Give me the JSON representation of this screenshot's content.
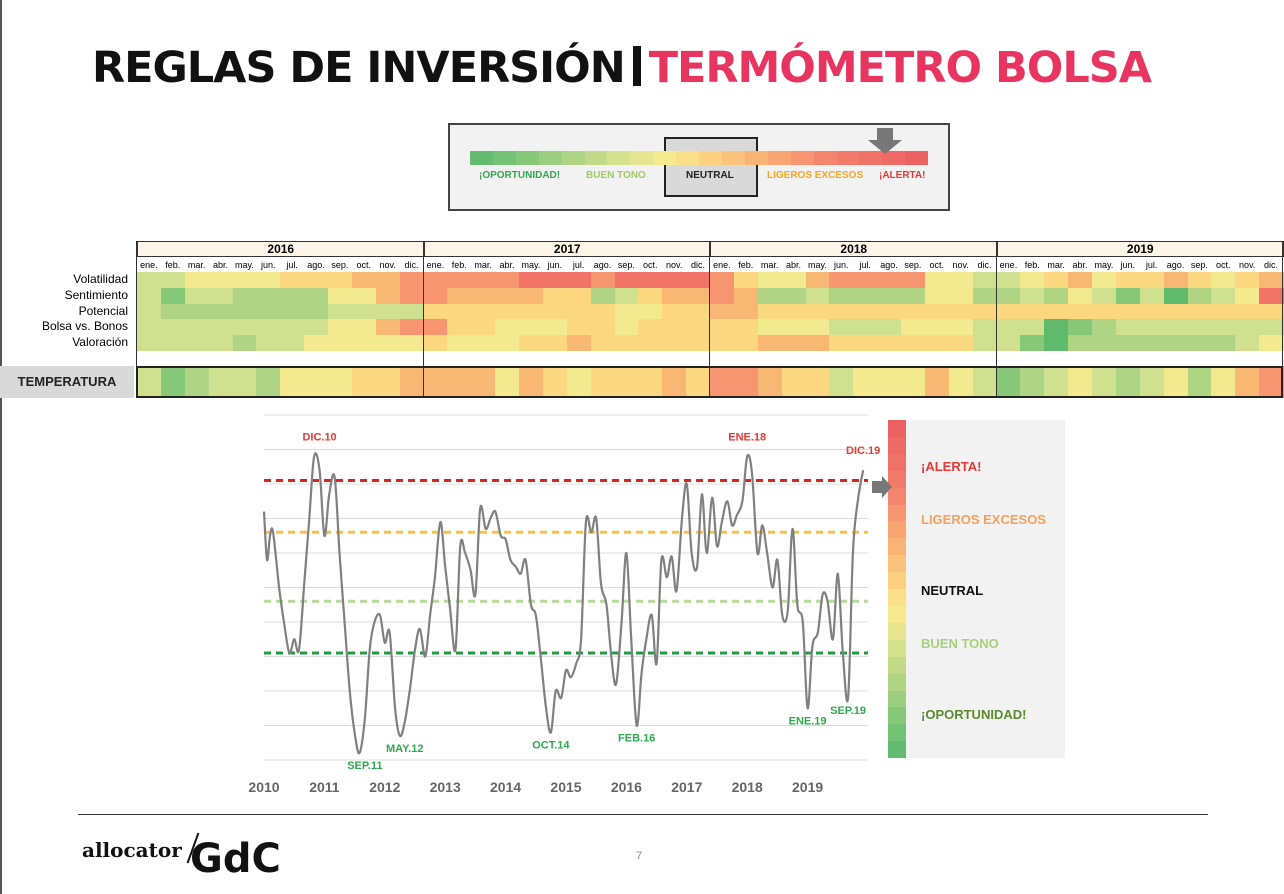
{
  "title": {
    "part1": "REGLAS DE INVERSIÓN",
    "part2": "TERMÓMETRO BOLSA"
  },
  "scale": {
    "labels": [
      "¡OPORTUNIDAD!",
      "BUEN TONO",
      "NEUTRAL",
      "LIGEROS EXCESOS",
      "¡ALERTA!"
    ],
    "label_colors": [
      "#2fa84f",
      "#9ccc65",
      "#222222",
      "#f5a623",
      "#e53935"
    ],
    "indicator_position": 0.88
  },
  "heatmap": {
    "years": [
      "2016",
      "2017",
      "2018",
      "2019"
    ],
    "months": [
      "ene.",
      "feb.",
      "mar.",
      "abr.",
      "may.",
      "jun.",
      "jul.",
      "ago.",
      "sep.",
      "oct.",
      "nov.",
      "dic."
    ],
    "rows": [
      "Volatilidad",
      "Sentimiento",
      "Potencial",
      "Bolsa vs. Bonos",
      "Valoración"
    ],
    "temperature_label": "TEMPERATURA",
    "levels": {
      "Volatilidad": [
        3,
        3,
        4,
        4,
        4,
        4,
        5,
        5,
        5,
        6,
        6,
        7,
        7,
        7,
        7,
        7,
        8,
        8,
        8,
        7,
        8,
        8,
        8,
        8,
        7,
        5,
        4,
        4,
        6,
        7,
        7,
        7,
        7,
        4,
        4,
        3,
        3,
        4,
        5,
        6,
        4,
        5,
        5,
        6,
        5,
        4,
        5,
        6
      ],
      "Sentimiento": [
        3,
        1,
        3,
        3,
        2,
        2,
        2,
        2,
        4,
        4,
        6,
        7,
        7,
        6,
        6,
        6,
        6,
        5,
        5,
        2,
        3,
        5,
        6,
        6,
        7,
        6,
        2,
        2,
        3,
        2,
        2,
        2,
        2,
        4,
        4,
        2,
        2,
        3,
        2,
        4,
        3,
        1,
        3,
        0,
        2,
        3,
        4,
        8
      ],
      "Potencial": [
        3,
        2,
        2,
        2,
        2,
        2,
        2,
        2,
        3,
        3,
        3,
        3,
        5,
        5,
        5,
        5,
        5,
        5,
        5,
        5,
        4,
        4,
        5,
        5,
        6,
        6,
        5,
        5,
        5,
        5,
        5,
        5,
        5,
        5,
        5,
        5,
        5,
        5,
        5,
        5,
        5,
        5,
        5,
        5,
        5,
        5,
        5,
        5
      ],
      "Bolsa vs. Bonos": [
        3,
        3,
        3,
        3,
        3,
        3,
        3,
        3,
        4,
        4,
        6,
        7,
        7,
        5,
        5,
        4,
        4,
        4,
        5,
        5,
        4,
        5,
        5,
        5,
        5,
        5,
        4,
        4,
        4,
        3,
        3,
        3,
        4,
        4,
        4,
        3,
        3,
        3,
        0,
        1,
        2,
        3,
        3,
        3,
        3,
        3,
        3,
        3
      ],
      "Valoración": [
        3,
        3,
        3,
        3,
        2,
        3,
        3,
        4,
        4,
        4,
        4,
        4,
        5,
        4,
        4,
        4,
        5,
        5,
        6,
        5,
        5,
        5,
        5,
        5,
        5,
        5,
        6,
        6,
        6,
        5,
        5,
        5,
        5,
        5,
        5,
        3,
        3,
        1,
        0,
        2,
        2,
        2,
        2,
        2,
        2,
        2,
        3,
        4
      ]
    },
    "temperature": [
      3,
      1,
      2,
      3,
      3,
      2,
      4,
      4,
      4,
      5,
      5,
      6,
      6,
      6,
      6,
      4,
      6,
      5,
      4,
      5,
      5,
      5,
      6,
      5,
      7,
      7,
      6,
      5,
      5,
      3,
      4,
      4,
      4,
      6,
      4,
      3,
      1,
      2,
      3,
      4,
      3,
      2,
      3,
      4,
      2,
      4,
      6,
      7
    ]
  },
  "sidebar": {
    "labels": [
      "¡ALERTA!",
      "LIGEROS EXCESOS",
      "NEUTRAL",
      "BUEN TONO",
      "¡OPORTUNIDAD!"
    ],
    "label_colors": [
      "#e53935",
      "#f5a05a",
      "#111111",
      "#a5d07a",
      "#5c8a2e"
    ]
  },
  "chart_data": {
    "type": "line",
    "x_ticks": [
      "2010",
      "2011",
      "2012",
      "2013",
      "2014",
      "2015",
      "2016",
      "2017",
      "2018",
      "2019"
    ],
    "xlim": [
      2010.0,
      2020.0
    ],
    "ylim": [
      0,
      10
    ],
    "thresholds": [
      {
        "value": 8.1,
        "color": "#d9261c"
      },
      {
        "value": 6.6,
        "color": "#f6c444"
      },
      {
        "value": 4.6,
        "color": "#b6dc9a"
      },
      {
        "value": 3.1,
        "color": "#1f9c3c"
      }
    ],
    "series": [
      {
        "points": [
          [
            2010.0,
            7.2
          ],
          [
            2010.05,
            5.8
          ],
          [
            2010.1,
            6.5
          ],
          [
            2010.15,
            6.6
          ],
          [
            2010.25,
            5.0
          ],
          [
            2010.33,
            4.0
          ],
          [
            2010.42,
            3.1
          ],
          [
            2010.5,
            3.5
          ],
          [
            2010.58,
            3.2
          ],
          [
            2010.67,
            5.2
          ],
          [
            2010.75,
            7.0
          ],
          [
            2010.83,
            8.8
          ],
          [
            2010.92,
            8.4
          ],
          [
            2011.0,
            6.5
          ],
          [
            2011.08,
            7.7
          ],
          [
            2011.17,
            8.2
          ],
          [
            2011.25,
            6.0
          ],
          [
            2011.33,
            4.1
          ],
          [
            2011.42,
            2.0
          ],
          [
            2011.5,
            0.8
          ],
          [
            2011.58,
            0.2
          ],
          [
            2011.67,
            1.2
          ],
          [
            2011.75,
            3.2
          ],
          [
            2011.83,
            4.0
          ],
          [
            2011.92,
            4.2
          ],
          [
            2012.0,
            3.4
          ],
          [
            2012.08,
            3.7
          ],
          [
            2012.17,
            1.5
          ],
          [
            2012.25,
            0.7
          ],
          [
            2012.33,
            1.1
          ],
          [
            2012.42,
            2.1
          ],
          [
            2012.5,
            3.2
          ],
          [
            2012.58,
            3.8
          ],
          [
            2012.67,
            3.0
          ],
          [
            2012.75,
            4.2
          ],
          [
            2012.83,
            5.3
          ],
          [
            2012.92,
            6.9
          ],
          [
            2013.0,
            5.6
          ],
          [
            2013.08,
            4.4
          ],
          [
            2013.17,
            3.2
          ],
          [
            2013.25,
            6.2
          ],
          [
            2013.33,
            6.0
          ],
          [
            2013.42,
            5.5
          ],
          [
            2013.5,
            4.8
          ],
          [
            2013.58,
            7.3
          ],
          [
            2013.67,
            6.7
          ],
          [
            2013.75,
            7.0
          ],
          [
            2013.83,
            7.2
          ],
          [
            2013.92,
            6.5
          ],
          [
            2014.0,
            6.4
          ],
          [
            2014.08,
            5.8
          ],
          [
            2014.17,
            5.6
          ],
          [
            2014.25,
            5.4
          ],
          [
            2014.33,
            5.8
          ],
          [
            2014.42,
            4.5
          ],
          [
            2014.5,
            4.2
          ],
          [
            2014.58,
            3.0
          ],
          [
            2014.67,
            1.5
          ],
          [
            2014.75,
            0.8
          ],
          [
            2014.83,
            2.0
          ],
          [
            2014.92,
            1.8
          ],
          [
            2015.0,
            2.6
          ],
          [
            2015.08,
            2.4
          ],
          [
            2015.17,
            2.8
          ],
          [
            2015.25,
            3.5
          ],
          [
            2015.33,
            6.9
          ],
          [
            2015.42,
            6.6
          ],
          [
            2015.5,
            7.0
          ],
          [
            2015.58,
            5.1
          ],
          [
            2015.67,
            4.5
          ],
          [
            2015.75,
            3.0
          ],
          [
            2015.83,
            2.2
          ],
          [
            2015.92,
            4.0
          ],
          [
            2016.0,
            6.0
          ],
          [
            2016.08,
            3.5
          ],
          [
            2016.17,
            1.0
          ],
          [
            2016.25,
            2.5
          ],
          [
            2016.33,
            3.5
          ],
          [
            2016.42,
            4.2
          ],
          [
            2016.5,
            2.8
          ],
          [
            2016.58,
            5.8
          ],
          [
            2016.67,
            5.3
          ],
          [
            2016.75,
            5.9
          ],
          [
            2016.83,
            4.9
          ],
          [
            2016.92,
            7.0
          ],
          [
            2017.0,
            8.0
          ],
          [
            2017.08,
            6.0
          ],
          [
            2017.17,
            5.6
          ],
          [
            2017.25,
            7.7
          ],
          [
            2017.33,
            6.0
          ],
          [
            2017.42,
            7.6
          ],
          [
            2017.5,
            6.2
          ],
          [
            2017.58,
            6.9
          ],
          [
            2017.67,
            7.5
          ],
          [
            2017.75,
            6.8
          ],
          [
            2017.83,
            7.1
          ],
          [
            2017.92,
            7.5
          ],
          [
            2018.0,
            8.8
          ],
          [
            2018.08,
            8.3
          ],
          [
            2018.17,
            6.0
          ],
          [
            2018.25,
            6.8
          ],
          [
            2018.33,
            6.0
          ],
          [
            2018.42,
            5.0
          ],
          [
            2018.5,
            5.8
          ],
          [
            2018.58,
            4.2
          ],
          [
            2018.67,
            4.3
          ],
          [
            2018.75,
            6.7
          ],
          [
            2018.83,
            4.5
          ],
          [
            2018.92,
            4.0
          ],
          [
            2019.0,
            1.5
          ],
          [
            2019.08,
            3.3
          ],
          [
            2019.17,
            3.7
          ],
          [
            2019.25,
            4.8
          ],
          [
            2019.33,
            4.6
          ],
          [
            2019.42,
            3.5
          ],
          [
            2019.5,
            5.4
          ],
          [
            2019.58,
            3.2
          ],
          [
            2019.67,
            1.8
          ],
          [
            2019.75,
            6.0
          ],
          [
            2019.83,
            7.5
          ],
          [
            2019.92,
            8.4
          ]
        ]
      }
    ],
    "annotations": [
      {
        "text": "DIC.10",
        "x": 2010.92,
        "y": 8.8,
        "color": "#e53935"
      },
      {
        "text": "SEP.11",
        "x": 2011.67,
        "y": 0.2,
        "color": "#2fa84f"
      },
      {
        "text": "MAY.12",
        "x": 2012.33,
        "y": 0.7,
        "color": "#2fa84f"
      },
      {
        "text": "OCT.14",
        "x": 2014.75,
        "y": 0.8,
        "color": "#2fa84f"
      },
      {
        "text": "FEB.16",
        "x": 2016.17,
        "y": 1.0,
        "color": "#2fa84f"
      },
      {
        "text": "ENE.18",
        "x": 2018.0,
        "y": 8.8,
        "color": "#e53935"
      },
      {
        "text": "ENE.19",
        "x": 2019.0,
        "y": 1.5,
        "color": "#2fa84f"
      },
      {
        "text": "SEP.19",
        "x": 2019.67,
        "y": 1.8,
        "color": "#2fa84f"
      },
      {
        "text": "DIC.19",
        "x": 2019.92,
        "y": 8.4,
        "color": "#e53935"
      }
    ]
  },
  "footer": {
    "brand1": "allocator",
    "brand2": "GdC",
    "page": "7"
  }
}
